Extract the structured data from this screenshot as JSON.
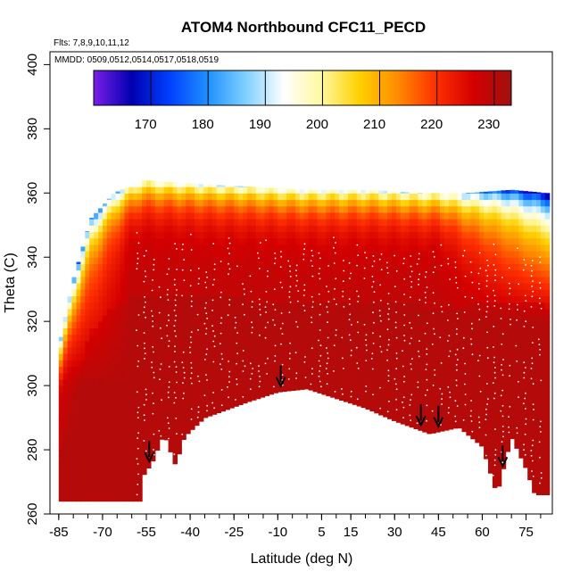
{
  "chart_data": {
    "type": "heatmap",
    "title": "ATOM4 Northbound CFC11_PECD",
    "flights_label": "Flts: 7,8,9,10,11,12",
    "dates_label": "MMDD: 0509,0512,0514,0517,0518,0519",
    "xlabel": "Latitude (deg N)",
    "ylabel": "Theta (C)",
    "xlim": [
      -88,
      84
    ],
    "ylim": [
      260,
      404
    ],
    "x_ticks": [
      -85,
      -70,
      -55,
      -40,
      -25,
      -10,
      5,
      15,
      30,
      45,
      60,
      75
    ],
    "x_tick_labels": [
      "-85",
      "-70",
      "-55",
      "-40",
      "-25",
      "-10",
      "5",
      "15",
      "30",
      "45",
      "60",
      "75"
    ],
    "y_ticks": [
      260,
      280,
      300,
      320,
      340,
      360,
      380,
      400
    ],
    "y_tick_labels": [
      "260",
      "280",
      "300",
      "320",
      "340",
      "360",
      "380",
      "400"
    ],
    "colorbar": {
      "range": [
        160,
        233
      ],
      "ticks": [
        170,
        180,
        190,
        200,
        210,
        220,
        230
      ],
      "tick_labels": [
        "170",
        "180",
        "190",
        "200",
        "210",
        "220",
        "230"
      ],
      "colors": [
        "#7a1fe8",
        "#0000b0",
        "#0040ff",
        "#1e90ff",
        "#7fd0ff",
        "#ffffff",
        "#fff8a0",
        "#ffd000",
        "#ff8c00",
        "#ff3000",
        "#d40000",
        "#a01010"
      ]
    },
    "tropopause_arrows_lat": [
      -54,
      -9,
      39,
      45,
      67
    ],
    "field": {
      "bottom_boundary": [
        [
          -85,
          264
        ],
        [
          -56,
          264
        ],
        [
          -56,
          272
        ],
        [
          -53,
          276
        ],
        [
          -49,
          285
        ],
        [
          -45,
          275
        ],
        [
          -42,
          284
        ],
        [
          -35,
          290
        ],
        [
          -20,
          295
        ],
        [
          -10,
          298
        ],
        [
          0,
          299
        ],
        [
          10,
          296
        ],
        [
          20,
          293
        ],
        [
          30,
          289
        ],
        [
          42,
          285
        ],
        [
          52,
          287
        ],
        [
          60,
          281
        ],
        [
          65,
          266
        ],
        [
          70,
          284
        ],
        [
          75,
          274
        ],
        [
          78,
          266
        ],
        [
          82,
          266
        ]
      ],
      "top_boundary": [
        [
          -85,
          312
        ],
        [
          -80,
          333
        ],
        [
          -74,
          352
        ],
        [
          -66,
          360
        ],
        [
          -56,
          364
        ],
        [
          -40,
          363
        ],
        [
          -20,
          362
        ],
        [
          0,
          361
        ],
        [
          20,
          361
        ],
        [
          40,
          360
        ],
        [
          55,
          360
        ],
        [
          70,
          361
        ],
        [
          82,
          360
        ]
      ]
    }
  }
}
